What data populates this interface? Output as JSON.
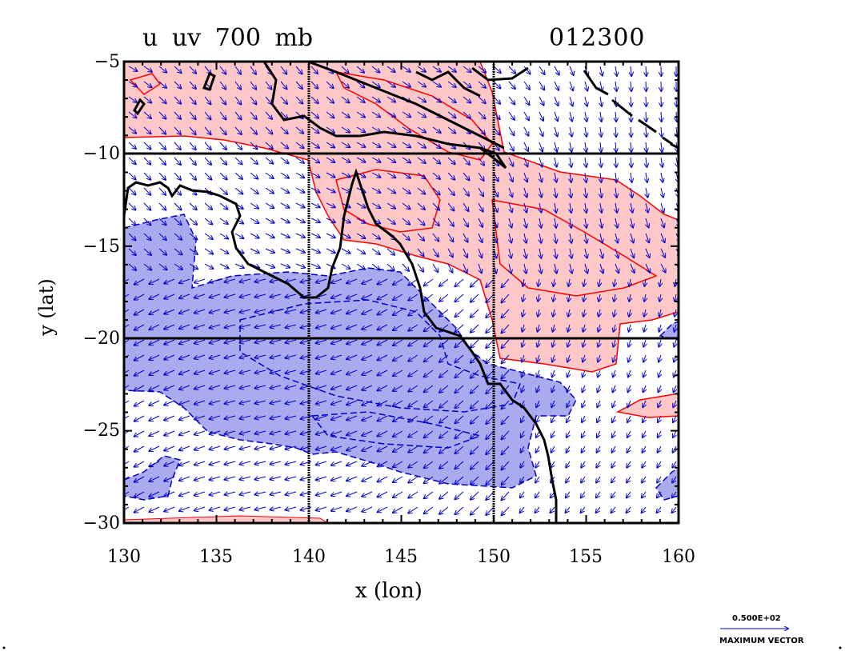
{
  "plot": {
    "title_left": "u  uv  700  mb",
    "title_right": "012300",
    "xlabel": "x (lon)",
    "ylabel": "y (lat)",
    "xticks": [
      "130",
      "135",
      "140",
      "145",
      "150",
      "155",
      "160"
    ],
    "yticks": [
      "−5",
      "−10",
      "−15",
      "−20",
      "−25",
      "−30"
    ]
  },
  "legend": {
    "vector_value": "0.500E+02",
    "vector_label": "MAXIMUM VECTOR"
  },
  "colors": {
    "positive_fill": "#ffc8c8",
    "positive_line": "#ff0000",
    "negative_fill": "#aaaaee",
    "negative_line": "#0000cc",
    "vector": "#0000cc",
    "coast": "#000000"
  },
  "chart_data": {
    "type": "map-contour-vector",
    "variable": "u",
    "level_mb": 700,
    "xlim": [
      130,
      160
    ],
    "ylim": [
      -30,
      -5
    ],
    "grid_lines_lon": [
      140,
      150
    ],
    "grid_lines_lat": [
      -10,
      -20
    ]
  }
}
